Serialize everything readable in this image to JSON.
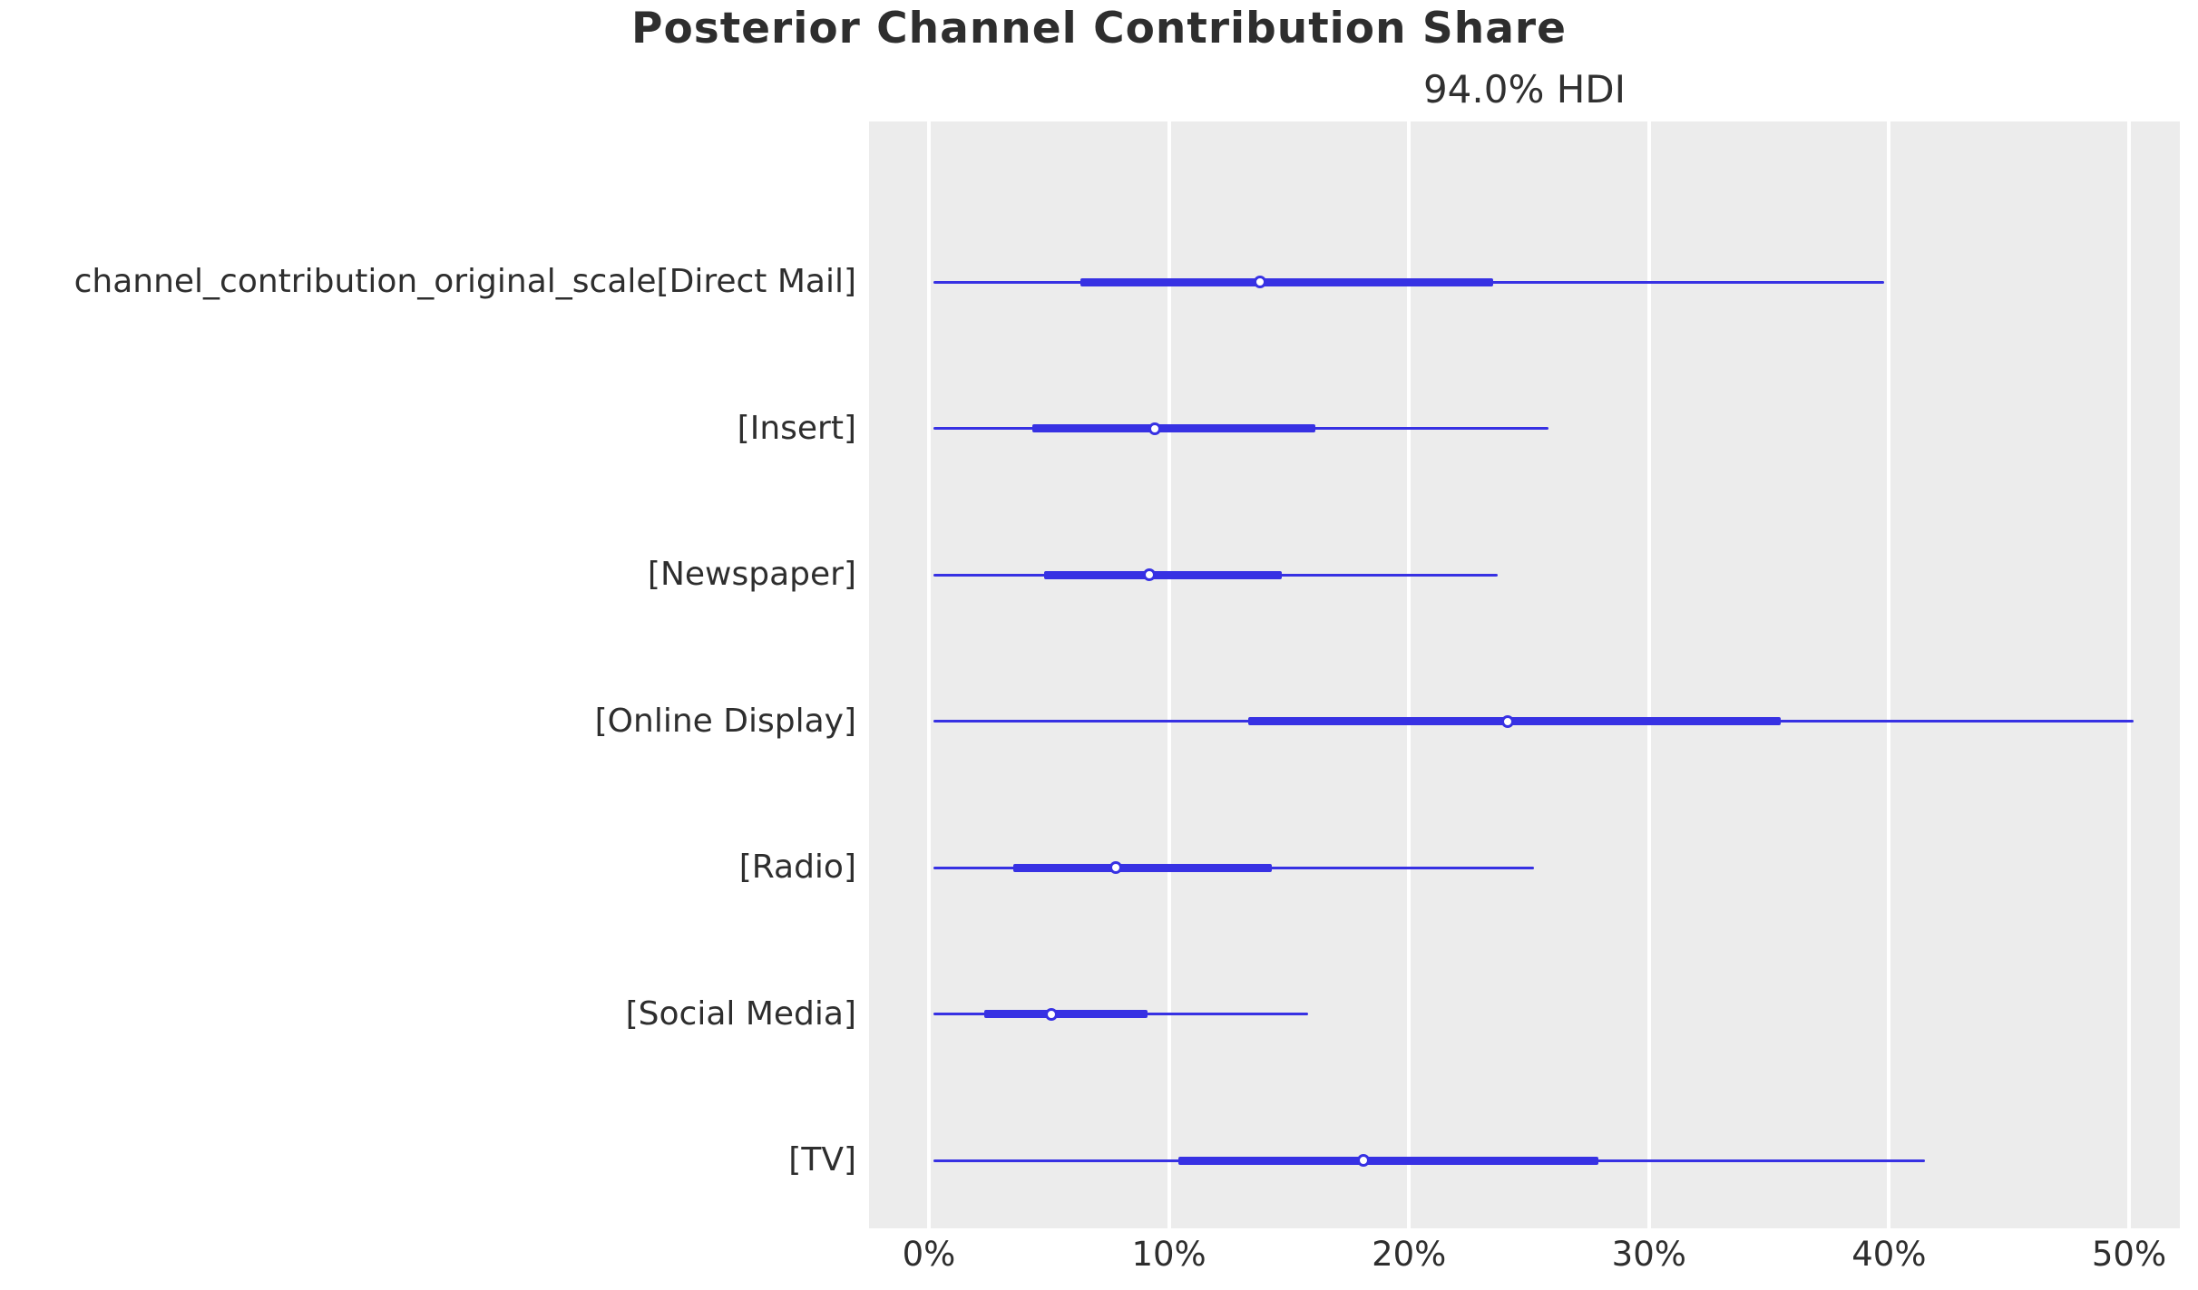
{
  "colors": {
    "line": "#3731E3",
    "panel_background": "#ECECEC",
    "gridline": "#FFFFFF",
    "text": "#2E2E2E"
  },
  "chart_data": {
    "type": "forest",
    "title": "Posterior Channel Contribution Share",
    "subtitle": "94.0% HDI",
    "hdi_probability": "94.0%",
    "xlabel": "",
    "ylabel": "",
    "x_unit": "percent",
    "xlim": [
      -2.5,
      52.1
    ],
    "x_tick_values": [
      0,
      10,
      20,
      30,
      40,
      50
    ],
    "x_tick_labels": [
      "0%",
      "10%",
      "20%",
      "30%",
      "40%",
      "50%"
    ],
    "grid": "white vertical gridlines on light gray panel, no axis spines",
    "legend": "none",
    "series": [
      {
        "label": "channel_contribution_original_scale[Direct Mail]",
        "hdi_low": 0.2,
        "quartile_low": 6.3,
        "median": 13.8,
        "quartile_high": 23.5,
        "hdi_high": 39.8
      },
      {
        "label": "[Insert]",
        "hdi_low": 0.2,
        "quartile_low": 4.3,
        "median": 9.4,
        "quartile_high": 16.1,
        "hdi_high": 25.8
      },
      {
        "label": "[Newspaper]",
        "hdi_low": 0.2,
        "quartile_low": 4.8,
        "median": 9.2,
        "quartile_high": 14.7,
        "hdi_high": 23.7
      },
      {
        "label": "[Online Display]",
        "hdi_low": 0.2,
        "quartile_low": 13.3,
        "median": 24.1,
        "quartile_high": 35.5,
        "hdi_high": 50.2
      },
      {
        "label": "[Radio]",
        "hdi_low": 0.2,
        "quartile_low": 3.5,
        "median": 7.8,
        "quartile_high": 14.3,
        "hdi_high": 25.2
      },
      {
        "label": "[Social Media]",
        "hdi_low": 0.2,
        "quartile_low": 2.3,
        "median": 5.1,
        "quartile_high": 9.1,
        "hdi_high": 15.8
      },
      {
        "label": "[TV]",
        "hdi_low": 0.2,
        "quartile_low": 10.4,
        "median": 18.1,
        "quartile_high": 27.9,
        "hdi_high": 41.5
      }
    ]
  }
}
